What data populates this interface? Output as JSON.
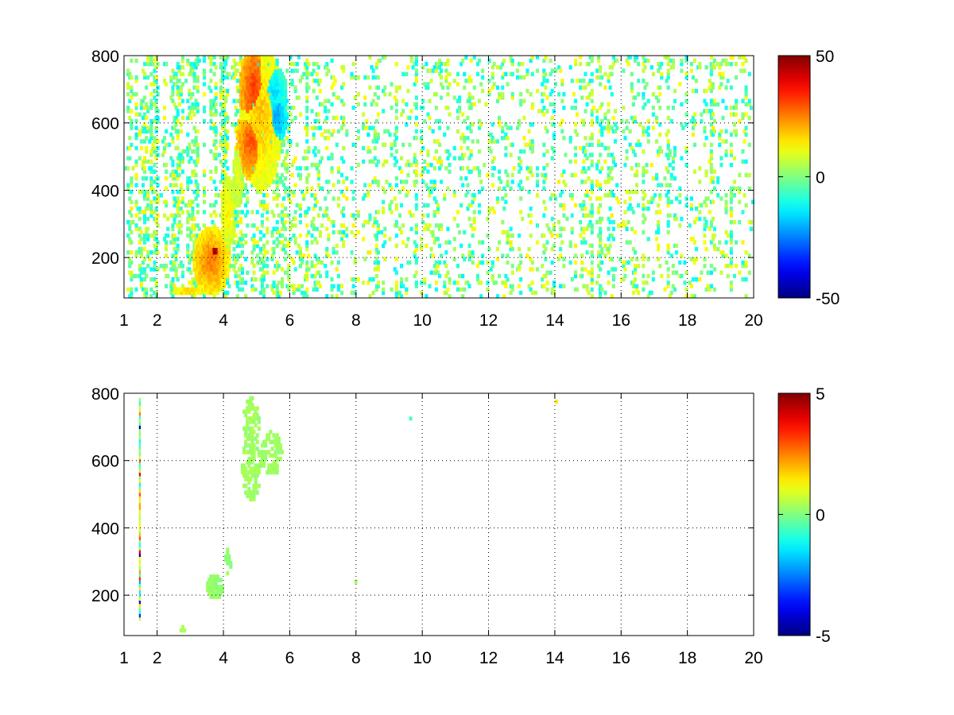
{
  "chart_data": [
    {
      "type": "heatmap",
      "title": "",
      "xlabel": "",
      "ylabel": "",
      "xlim": [
        1,
        20
      ],
      "ylim": [
        80,
        800
      ],
      "xticks": [
        1,
        2,
        4,
        6,
        8,
        10,
        12,
        14,
        16,
        18,
        20
      ],
      "yticks": [
        200,
        400,
        600,
        800
      ],
      "grid": true,
      "colormap": "jet",
      "colorbar": {
        "ticks": [
          -50,
          0,
          50
        ],
        "range": [
          -50,
          50
        ]
      },
      "background": "white (no data)",
      "features": [
        {
          "x": 2.9,
          "y": 100,
          "value": 18,
          "sx": 0.25,
          "sy": 8,
          "density": 0.85
        },
        {
          "x": 3.7,
          "y": 215,
          "value": 48,
          "sx": 0.12,
          "sy": 18,
          "density": 0.95
        },
        {
          "x": 3.6,
          "y": 190,
          "value": 25,
          "sx": 0.3,
          "sy": 55,
          "density": 0.85
        },
        {
          "x": 4.1,
          "y": 330,
          "value": 14,
          "sx": 0.12,
          "sy": 60,
          "density": 0.8
        },
        {
          "x": 4.4,
          "y": 440,
          "value": 10,
          "sx": 0.08,
          "sy": 50,
          "density": 0.65
        },
        {
          "x": 4.8,
          "y": 540,
          "value": 30,
          "sx": 0.25,
          "sy": 60,
          "density": 0.95
        },
        {
          "x": 4.9,
          "y": 700,
          "value": 32,
          "sx": 0.25,
          "sy": 80,
          "density": 0.95
        },
        {
          "x": 5.1,
          "y": 620,
          "value": 18,
          "sx": 0.35,
          "sy": 120,
          "density": 0.75
        },
        {
          "x": 5.6,
          "y": 620,
          "value": -22,
          "sx": 0.15,
          "sy": 40,
          "density": 0.95
        },
        {
          "x": 5.5,
          "y": 690,
          "value": -15,
          "sx": 0.2,
          "sy": 40,
          "density": 0.7
        }
      ],
      "background_scatter": {
        "density_x_lt_6": 0.45,
        "density_x_ge_6": 0.22,
        "value_range": [
          -14,
          14
        ]
      }
    },
    {
      "type": "heatmap",
      "title": "",
      "xlabel": "",
      "ylabel": "",
      "xlim": [
        1,
        20
      ],
      "ylim": [
        80,
        800
      ],
      "xticks": [
        1,
        2,
        4,
        6,
        8,
        10,
        12,
        14,
        16,
        18,
        20
      ],
      "yticks": [
        200,
        400,
        600,
        800
      ],
      "grid": true,
      "colormap": "jet",
      "colorbar": {
        "ticks": [
          -5,
          0,
          5
        ],
        "range": [
          -5,
          5
        ]
      },
      "background": "white (no data)",
      "features": [
        {
          "x": 3.7,
          "y": 225,
          "value": 0.2,
          "sx": 0.15,
          "sy": 22,
          "density": 0.75
        },
        {
          "x": 4.1,
          "y": 300,
          "value": 0.2,
          "sx": 0.05,
          "sy": 25,
          "density": 0.5
        },
        {
          "x": 4.8,
          "y": 580,
          "value": 0.3,
          "sx": 0.17,
          "sy": 60,
          "density": 0.5
        },
        {
          "x": 4.8,
          "y": 720,
          "value": 0.3,
          "sx": 0.15,
          "sy": 40,
          "density": 0.45
        },
        {
          "x": 5.4,
          "y": 620,
          "value": 0.3,
          "sx": 0.2,
          "sy": 40,
          "density": 0.45
        },
        {
          "x": 2.8,
          "y": 100,
          "value": 0.3,
          "sx": 0.1,
          "sy": 5,
          "density": 0.5
        }
      ],
      "column_stripe": {
        "x": 1.45,
        "y_range": [
          130,
          790
        ],
        "value_range": [
          -5,
          5
        ]
      },
      "isolated_points": [
        {
          "x": 9.6,
          "y": 725,
          "value": -0.5
        },
        {
          "x": 14.0,
          "y": 775,
          "value": 1.5
        },
        {
          "x": 7.95,
          "y": 240,
          "value": 0.3
        }
      ]
    }
  ]
}
